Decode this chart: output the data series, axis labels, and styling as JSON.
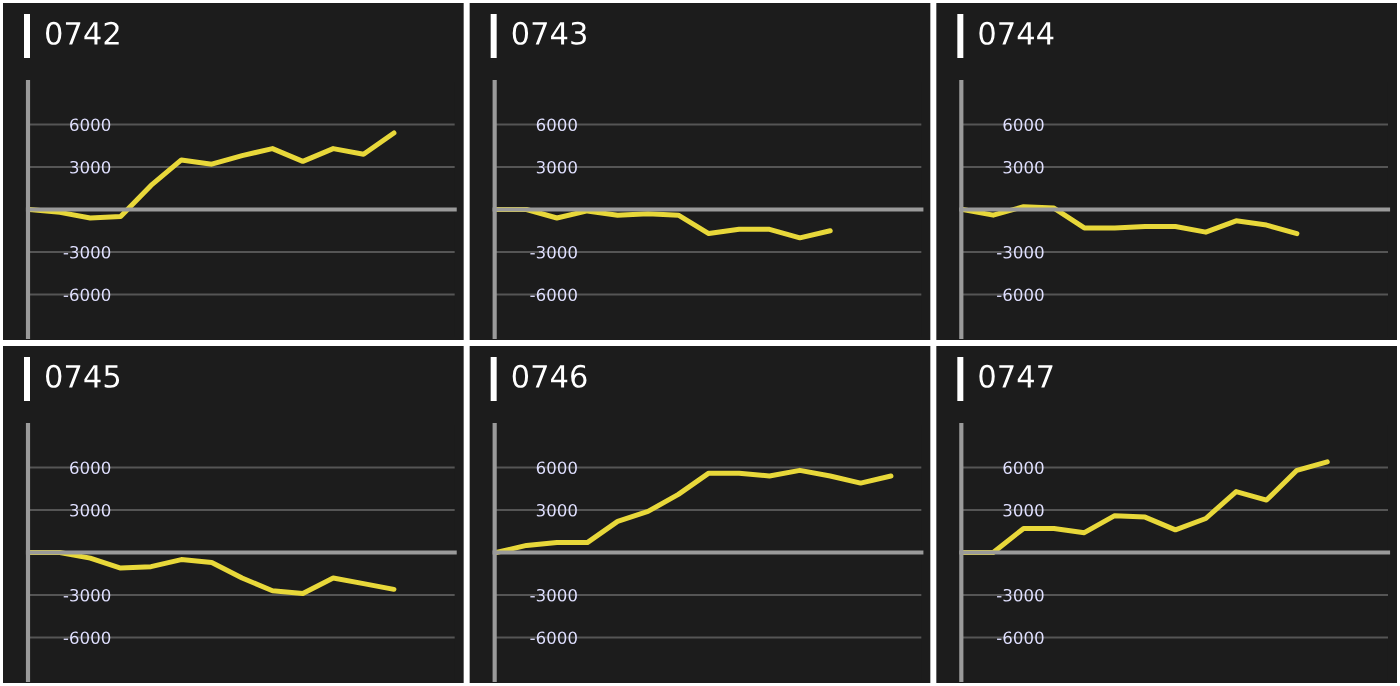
{
  "chart_data": [
    {
      "type": "line",
      "title": "0742",
      "categories": [
        null,
        null,
        null,
        null,
        null,
        null,
        null,
        null,
        null,
        null,
        null,
        null,
        null,
        null,
        null
      ],
      "series": [
        {
          "color": "#e8d83a",
          "values": [
            0,
            -200,
            -600,
            -500,
            1700,
            3500,
            3200,
            3800,
            4300,
            3400,
            4300,
            3900,
            5400,
            null,
            null
          ]
        }
      ],
      "ylim": [
        -9000,
        9000
      ],
      "yticks": [
        -6000,
        -3000,
        3000,
        6000
      ],
      "tick_labels": "y",
      "grid": "y"
    },
    {
      "type": "line",
      "title": "0743",
      "categories": [
        null,
        null,
        null,
        null,
        null,
        null,
        null,
        null,
        null,
        null,
        null,
        null,
        null,
        null,
        null
      ],
      "series": [
        {
          "color": "#e8d83a",
          "values": [
            0,
            0,
            -600,
            -100,
            -400,
            -300,
            -400,
            -1700,
            -1400,
            -1400,
            -2000,
            -1500,
            null,
            null,
            null
          ]
        }
      ],
      "ylim": [
        -9000,
        9000
      ],
      "yticks": [
        -6000,
        -3000,
        3000,
        6000
      ],
      "tick_labels": "y",
      "grid": "y"
    },
    {
      "type": "line",
      "title": "0744",
      "categories": [
        null,
        null,
        null,
        null,
        null,
        null,
        null,
        null,
        null,
        null,
        null,
        null,
        null,
        null,
        null
      ],
      "series": [
        {
          "color": "#e8d83a",
          "values": [
            0,
            -400,
            200,
            100,
            -1300,
            -1300,
            -1200,
            -1200,
            -1600,
            -800,
            -1100,
            -1700,
            null,
            null,
            null
          ]
        }
      ],
      "ylim": [
        -9000,
        9000
      ],
      "yticks": [
        -6000,
        -3000,
        3000,
        6000
      ],
      "tick_labels": "y",
      "grid": "y"
    },
    {
      "type": "line",
      "title": "0745",
      "categories": [
        null,
        null,
        null,
        null,
        null,
        null,
        null,
        null,
        null,
        null,
        null,
        null,
        null,
        null,
        null
      ],
      "series": [
        {
          "color": "#e8d83a",
          "values": [
            0,
            0,
            -400,
            -1100,
            -1000,
            -500,
            -700,
            -1800,
            -2700,
            -2900,
            -1800,
            -2200,
            -2600,
            null,
            null
          ]
        }
      ],
      "ylim": [
        -9000,
        9000
      ],
      "yticks": [
        -6000,
        -3000,
        3000,
        6000
      ],
      "tick_labels": "y",
      "grid": "y"
    },
    {
      "type": "line",
      "title": "0746",
      "categories": [
        null,
        null,
        null,
        null,
        null,
        null,
        null,
        null,
        null,
        null,
        null,
        null,
        null,
        null,
        null
      ],
      "series": [
        {
          "color": "#e8d83a",
          "values": [
            0,
            500,
            700,
            700,
            2200,
            2900,
            4100,
            5600,
            5600,
            5400,
            5800,
            5400,
            4900,
            5400,
            null
          ]
        }
      ],
      "ylim": [
        -9000,
        9000
      ],
      "yticks": [
        -6000,
        -3000,
        3000,
        6000
      ],
      "tick_labels": "y",
      "grid": "y"
    },
    {
      "type": "line",
      "title": "0747",
      "categories": [
        null,
        null,
        null,
        null,
        null,
        null,
        null,
        null,
        null,
        null,
        null,
        null,
        null,
        null,
        null
      ],
      "series": [
        {
          "color": "#e8d83a",
          "values": [
            0,
            0,
            1700,
            1700,
            1400,
            2600,
            2500,
            1600,
            2400,
            4300,
            3700,
            5800,
            6400,
            null,
            null
          ]
        }
      ],
      "ylim": [
        -9000,
        9000
      ],
      "yticks": [
        -6000,
        -3000,
        3000,
        6000
      ],
      "tick_labels": "y",
      "grid": "y"
    }
  ]
}
